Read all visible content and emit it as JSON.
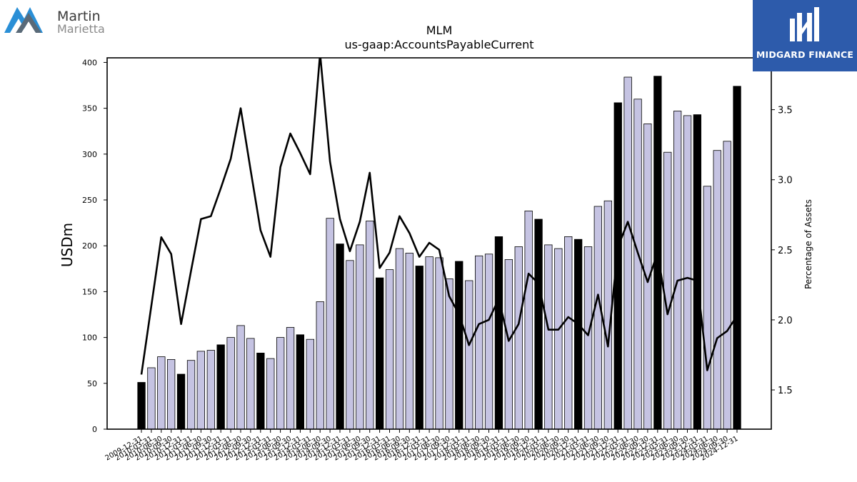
{
  "logos": {
    "left": {
      "line1": "Martin",
      "line2": "Marietta",
      "colors": [
        "#2a8fd6",
        "#5a6a78"
      ]
    },
    "right": {
      "text": "MIDGARD FINANCE",
      "background": "#2d5bab"
    }
  },
  "chart_data": {
    "type": "bar",
    "title": "MLM",
    "subtitle": "us-gaap:AccountsPayableCurrent",
    "ylabel": "USDm",
    "y2label": "Percentage of Assets",
    "ylim": [
      0,
      405
    ],
    "y2lim": [
      1.22,
      3.87
    ],
    "yticks": [
      0,
      50,
      100,
      150,
      200,
      250,
      300,
      350,
      400
    ],
    "y2ticks": [
      1.5,
      2.0,
      2.5,
      3.0,
      3.5
    ],
    "x_tick_labels": [
      "2009-12-31",
      "2010-03-31",
      "2010-06-30",
      "2010-09-30",
      "2010-12-31",
      "2011-03-31",
      "2011-06-30",
      "2011-09-30",
      "2011-12-31",
      "2012-03-31",
      "2012-06-30",
      "2012-09-30",
      "2012-12-31",
      "2013-03-31",
      "2013-06-30",
      "2013-09-30",
      "2013-12-31",
      "2014-03-31",
      "2014-06-30",
      "2014-09-30",
      "2014-12-31",
      "2015-03-31",
      "2015-06-30",
      "2015-09-30",
      "2015-12-31",
      "2016-03-31",
      "2016-06-30",
      "2016-09-30",
      "2016-12-31",
      "2017-03-31",
      "2017-06-30",
      "2017-09-30",
      "2017-12-31",
      "2018-03-31",
      "2018-06-30",
      "2018-09-30",
      "2018-12-31",
      "2019-03-31",
      "2019-06-30",
      "2019-09-30",
      "2019-12-31",
      "2020-03-31",
      "2020-06-30",
      "2020-09-30",
      "2020-12-31",
      "2021-03-31",
      "2021-06-30",
      "2021-09-30",
      "2021-12-31",
      "2022-03-31",
      "2022-06-30",
      "2022-09-30",
      "2022-12-31",
      "2023-03-31",
      "2023-06-30",
      "2023-09-30",
      "2023-12-31",
      "2024-03-31",
      "2024-06-30",
      "2024-09-30",
      "2024-12-31"
    ],
    "bar_values": [
      51,
      67,
      79,
      76,
      60,
      75,
      85,
      86,
      92,
      100,
      113,
      99,
      83,
      77,
      100,
      111,
      103,
      98,
      139,
      230,
      202,
      184,
      201,
      227,
      165,
      174,
      197,
      192,
      178,
      188,
      187,
      164,
      183,
      162,
      189,
      191,
      210,
      185,
      199,
      238,
      229,
      201,
      197,
      210,
      207,
      199,
      243,
      249,
      356,
      384,
      360,
      333,
      385,
      302,
      347,
      342,
      343,
      265,
      304,
      314,
      374
    ],
    "bar_is_year_end": [
      true,
      false,
      false,
      false,
      true,
      false,
      false,
      false,
      true,
      false,
      false,
      false,
      true,
      false,
      false,
      false,
      true,
      false,
      false,
      false,
      true,
      false,
      false,
      false,
      true,
      false,
      false,
      false,
      true,
      false,
      false,
      false,
      true,
      false,
      false,
      false,
      true,
      false,
      false,
      false,
      true,
      false,
      false,
      false,
      true,
      false,
      false,
      false,
      true,
      false,
      false,
      false,
      true,
      false,
      false,
      false,
      true,
      false,
      false,
      false,
      true
    ],
    "line_values": [
      1.61,
      2.1,
      2.59,
      2.47,
      1.97,
      2.35,
      2.72,
      2.74,
      2.94,
      3.15,
      3.51,
      3.07,
      2.64,
      2.45,
      3.09,
      3.33,
      3.19,
      3.04,
      3.9,
      3.13,
      2.72,
      2.49,
      2.7,
      3.05,
      2.37,
      2.48,
      2.74,
      2.62,
      2.45,
      2.55,
      2.5,
      2.17,
      2.04,
      1.82,
      1.97,
      2.0,
      2.15,
      1.85,
      1.97,
      2.33,
      2.26,
      1.93,
      1.93,
      2.02,
      1.97,
      1.89,
      2.18,
      1.81,
      2.52,
      2.7,
      2.48,
      2.27,
      2.48,
      2.04,
      2.28,
      2.3,
      2.28,
      1.64,
      1.87,
      1.92,
      2.03
    ],
    "colors": {
      "bar_year_end": "#000000",
      "bar_quarter": "#c5c3e2",
      "line": "#000000"
    },
    "grid": false,
    "legend": "none"
  }
}
